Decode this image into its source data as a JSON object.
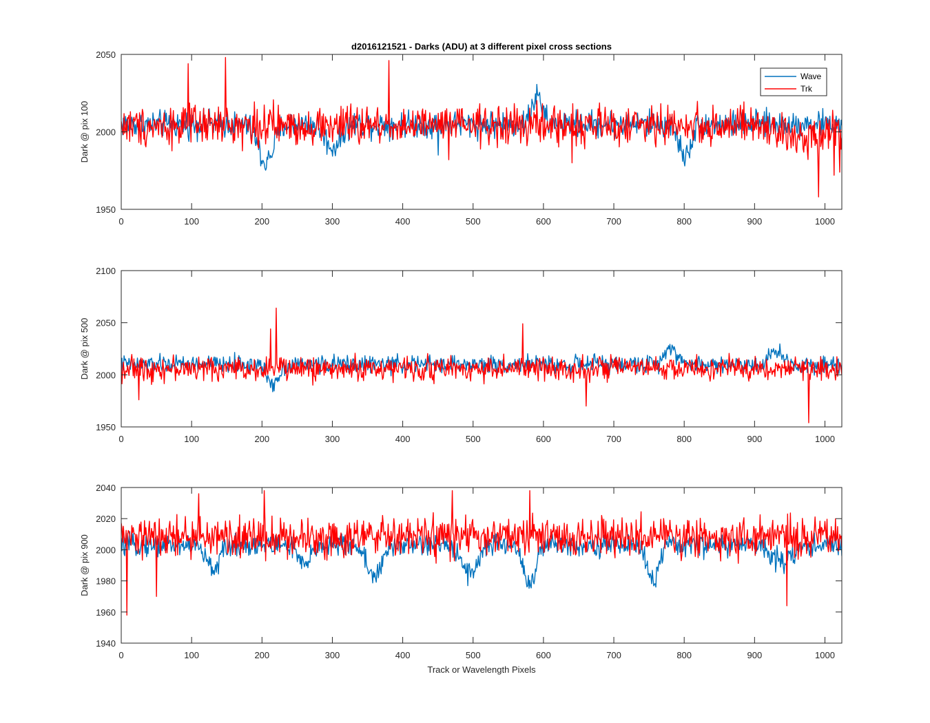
{
  "chart_data": [
    {
      "type": "line",
      "title": "d2016121521 - Darks (ADU) at 3 different pixel cross sections",
      "ylabel": "Dark @ pix 100",
      "xlabel": "",
      "xlim": [
        0,
        1024
      ],
      "ylim": [
        1950,
        2050
      ],
      "xticks": [
        0,
        100,
        200,
        300,
        400,
        500,
        600,
        700,
        800,
        900,
        1000
      ],
      "yticks": [
        1950,
        2000,
        2050
      ],
      "legend": {
        "placement": "top-right",
        "entries": [
          "Wave",
          "Trk"
        ]
      },
      "series": [
        {
          "name": "Wave",
          "color": "#0072bd",
          "base": 2005,
          "noise": 6,
          "dips": [
            [
              205,
              -25,
              15
            ],
            [
              300,
              -15,
              15
            ],
            [
              800,
              -20,
              12
            ]
          ],
          "bumps": [
            [
              590,
              18,
              10
            ]
          ],
          "spikes": [
            [
              450,
              -20
            ]
          ]
        },
        {
          "name": "Trk",
          "color": "#ff0000",
          "base": 2004,
          "noise": 9,
          "dips": [
            [
              960,
              -8,
              40
            ]
          ],
          "bumps": [],
          "spikes": [
            [
              95,
              40
            ],
            [
              148,
              44
            ],
            [
              380,
              42
            ],
            [
              990,
              -46
            ],
            [
              640,
              -24
            ],
            [
              465,
              -22
            ],
            [
              1020,
              -30
            ],
            [
              1012,
              -32
            ]
          ]
        }
      ]
    },
    {
      "type": "line",
      "title": "",
      "ylabel": "Dark @ pix 500",
      "xlabel": "",
      "xlim": [
        0,
        1024
      ],
      "ylim": [
        1950,
        2100
      ],
      "xticks": [
        0,
        100,
        200,
        300,
        400,
        500,
        600,
        700,
        800,
        900,
        1000
      ],
      "yticks": [
        1950,
        2000,
        2050,
        2100
      ],
      "series": [
        {
          "name": "Wave",
          "color": "#0072bd",
          "base": 2010,
          "noise": 6,
          "dips": [
            [
              215,
              -18,
              12
            ]
          ],
          "bumps": [
            [
              780,
              18,
              12
            ],
            [
              930,
              14,
              12
            ]
          ],
          "spikes": []
        },
        {
          "name": "Trk",
          "color": "#ff0000",
          "base": 2006,
          "noise": 8,
          "dips": [],
          "bumps": [],
          "spikes": [
            [
              220,
              58
            ],
            [
              212,
              38
            ],
            [
              570,
              43
            ],
            [
              976,
              -52
            ],
            [
              660,
              -36
            ],
            [
              25,
              -30
            ]
          ]
        }
      ]
    },
    {
      "type": "line",
      "title": "",
      "ylabel": "Dark @ pix 900",
      "xlabel": "Track or Wavelength Pixels",
      "xlim": [
        0,
        1024
      ],
      "ylim": [
        1940,
        2040
      ],
      "xticks": [
        0,
        100,
        200,
        300,
        400,
        500,
        600,
        700,
        800,
        900,
        1000
      ],
      "yticks": [
        1940,
        1960,
        1980,
        2000,
        2020,
        2040
      ],
      "series": [
        {
          "name": "Wave",
          "color": "#0072bd",
          "base": 2003,
          "noise": 5,
          "dips": [
            [
              130,
              -15,
              14
            ],
            [
              260,
              -14,
              12
            ],
            [
              360,
              -20,
              15
            ],
            [
              495,
              -18,
              15
            ],
            [
              580,
              -25,
              12
            ],
            [
              755,
              -22,
              12
            ],
            [
              940,
              -10,
              20
            ]
          ],
          "bumps": [],
          "spikes": []
        },
        {
          "name": "Trk",
          "color": "#ff0000",
          "base": 2008,
          "noise": 9,
          "dips": [],
          "bumps": [],
          "spikes": [
            [
              8,
              -50
            ],
            [
              50,
              -38
            ],
            [
              110,
              28
            ],
            [
              203,
              30
            ],
            [
              945,
              -44
            ],
            [
              580,
              30
            ],
            [
              470,
              30
            ]
          ]
        }
      ]
    }
  ]
}
